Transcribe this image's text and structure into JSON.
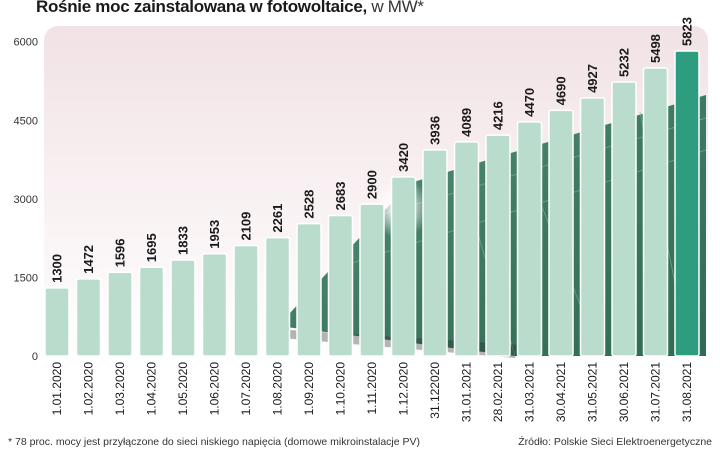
{
  "title": "Rośnie moc zainstalowana w fotowoltaice,",
  "title_unit": " w MW*",
  "footnote": "* 78 proc. mocy jest przyłączone do sieci niskiego napięcia (domowe mikroinstalacje PV)",
  "source": "Źródło: Polskie Sieci Elektroenergetyczne",
  "chart_data": {
    "type": "bar",
    "categories": [
      "1.01.2020",
      "1.02.2020",
      "1.03.2020",
      "1.04.2020",
      "1.05.2020",
      "1.06.2020",
      "1.07.2020",
      "1.08.2020",
      "1.09.2020",
      "1.10.2020",
      "1.11.2020",
      "1.12.2020",
      "31.122020",
      "31.01.2021",
      "28.02.2021",
      "31.03.2021",
      "30.04.2021",
      "31.05.2021",
      "30.06.2021",
      "31.07.2021",
      "31.08.2021"
    ],
    "values": [
      1300,
      1472,
      1596,
      1695,
      1833,
      1953,
      2109,
      2261,
      2528,
      2683,
      2900,
      3420,
      3936,
      4089,
      4216,
      4470,
      4690,
      4927,
      5232,
      5498,
      5823
    ],
    "yticks": [
      0,
      1500,
      3000,
      4500,
      6000
    ],
    "ylim": [
      0,
      6300
    ],
    "grid": false,
    "colors": {
      "bar": "#b9dccc",
      "bar_last": "#2e9c7f",
      "bar_stroke": "#ffffff",
      "panel": "#3f7a62",
      "background_top": "#f1e2e5"
    }
  }
}
